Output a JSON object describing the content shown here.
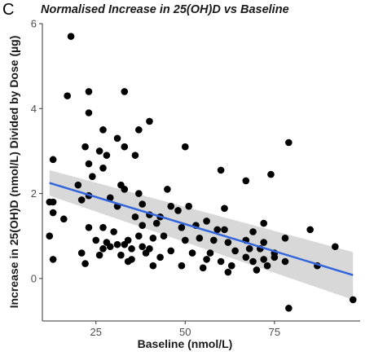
{
  "panel_label": "C",
  "chart_data": {
    "type": "scatter",
    "title": "Normalised Increase in 25(OH)D vs Baseline",
    "xlabel": "Baseline (nmol/L)",
    "ylabel": "Increase in 25(OH)D (nmol/L) Divided by Dose (µg)",
    "xlim": [
      10,
      99
    ],
    "ylim": [
      -1.0,
      6.0
    ],
    "x_ticks": [
      25,
      50,
      75
    ],
    "y_ticks": [
      0,
      2,
      4,
      6
    ],
    "grid": false,
    "colors": {
      "points": "#000000",
      "fit_line": "#3366dd",
      "confidence_band": "#c8c8c8"
    },
    "trend_line": {
      "x": [
        12,
        97
      ],
      "y": [
        2.25,
        0.08
      ]
    },
    "confidence_band": {
      "x": [
        12,
        97
      ],
      "lower": [
        1.95,
        -0.5
      ],
      "upper": [
        2.55,
        0.62
      ]
    },
    "points": [
      [
        18,
        5.7
      ],
      [
        17,
        4.3
      ],
      [
        23,
        4.4
      ],
      [
        33,
        4.4
      ],
      [
        23,
        3.9
      ],
      [
        40,
        3.7
      ],
      [
        27,
        3.5
      ],
      [
        37,
        3.5
      ],
      [
        31,
        3.3
      ],
      [
        22,
        3.1
      ],
      [
        26,
        3.0
      ],
      [
        28,
        2.9
      ],
      [
        33,
        3.1
      ],
      [
        50,
        3.1
      ],
      [
        79,
        3.2
      ],
      [
        13,
        2.8
      ],
      [
        23,
        2.7
      ],
      [
        27,
        2.6
      ],
      [
        36,
        2.9
      ],
      [
        24,
        2.4
      ],
      [
        32,
        2.2
      ],
      [
        20,
        2.2
      ],
      [
        33,
        2.1
      ],
      [
        37,
        2.0
      ],
      [
        45,
        2.1
      ],
      [
        60,
        2.55
      ],
      [
        74,
        2.45
      ],
      [
        67,
        2.3
      ],
      [
        13,
        1.8
      ],
      [
        12,
        1.8
      ],
      [
        21,
        1.85
      ],
      [
        23,
        1.95
      ],
      [
        29,
        1.9
      ],
      [
        31,
        1.7
      ],
      [
        38,
        1.75
      ],
      [
        46,
        1.7
      ],
      [
        48,
        1.6
      ],
      [
        51,
        1.7
      ],
      [
        61,
        1.65
      ],
      [
        13,
        1.55
      ],
      [
        16,
        1.4
      ],
      [
        36,
        1.45
      ],
      [
        40,
        1.5
      ],
      [
        43,
        1.45
      ],
      [
        56,
        1.35
      ],
      [
        53,
        1.25
      ],
      [
        72,
        1.3
      ],
      [
        23,
        1.2
      ],
      [
        27,
        1.2
      ],
      [
        30,
        1.1
      ],
      [
        38,
        1.25
      ],
      [
        42,
        1.3
      ],
      [
        49,
        1.2
      ],
      [
        59,
        1.15
      ],
      [
        61,
        1.15
      ],
      [
        69,
        1.1
      ],
      [
        85,
        1.15
      ],
      [
        12,
        1.0
      ],
      [
        25,
        0.9
      ],
      [
        28,
        0.85
      ],
      [
        31,
        0.8
      ],
      [
        34,
        0.9
      ],
      [
        37,
        1.0
      ],
      [
        41,
        0.95
      ],
      [
        44,
        1.0
      ],
      [
        50,
        0.9
      ],
      [
        54,
        0.95
      ],
      [
        58,
        0.9
      ],
      [
        62,
        0.85
      ],
      [
        67,
        0.9
      ],
      [
        72,
        0.85
      ],
      [
        78,
        0.95
      ],
      [
        21,
        0.6
      ],
      [
        27,
        0.7
      ],
      [
        29,
        0.75
      ],
      [
        33,
        0.8
      ],
      [
        35,
        0.7
      ],
      [
        38,
        0.75
      ],
      [
        40,
        0.7
      ],
      [
        46,
        0.65
      ],
      [
        52,
        0.6
      ],
      [
        57,
        0.6
      ],
      [
        64,
        0.65
      ],
      [
        68,
        0.7
      ],
      [
        71,
        0.7
      ],
      [
        75,
        0.6
      ],
      [
        92,
        0.75
      ],
      [
        13,
        0.45
      ],
      [
        22,
        0.35
      ],
      [
        26,
        0.55
      ],
      [
        32,
        0.55
      ],
      [
        35,
        0.45
      ],
      [
        39,
        0.6
      ],
      [
        43,
        0.5
      ],
      [
        56,
        0.45
      ],
      [
        60,
        0.4
      ],
      [
        63,
        0.3
      ],
      [
        67,
        0.5
      ],
      [
        69,
        0.4
      ],
      [
        72,
        0.45
      ],
      [
        75,
        0.5
      ],
      [
        78,
        0.4
      ],
      [
        34,
        0.4
      ],
      [
        41,
        0.3
      ],
      [
        49,
        0.3
      ],
      [
        55,
        0.25
      ],
      [
        62,
        0.15
      ],
      [
        70,
        0.2
      ],
      [
        73,
        0.3
      ],
      [
        87,
        0.3
      ],
      [
        79,
        -0.7
      ],
      [
        97,
        -0.5
      ]
    ]
  }
}
